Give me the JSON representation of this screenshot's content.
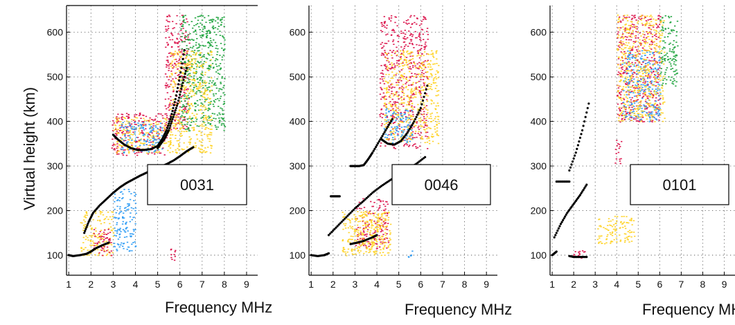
{
  "y_axis_label": "Virtual height  (km)",
  "chart_data": [
    {
      "type": "scatter",
      "title": "",
      "label": "0031",
      "xlabel": "Frequency MHz",
      "ylabel": "Virtual height  (km)",
      "xlim": [
        0.9,
        9.5
      ],
      "ylim": [
        55,
        660
      ],
      "xticks": [
        1,
        2,
        3,
        4,
        5,
        6,
        7,
        8,
        9
      ],
      "yticks": [
        100,
        200,
        300,
        400,
        500,
        600
      ],
      "grid": true,
      "legend": "none",
      "traces": [
        {
          "x": [
            1.0,
            1.2,
            1.5,
            1.8,
            2.0,
            2.2,
            2.5,
            2.8
          ],
          "y": [
            100,
            98,
            100,
            103,
            108,
            115,
            122,
            128
          ]
        },
        {
          "x": [
            1.7,
            1.9,
            2.1,
            2.4,
            2.7,
            3.0,
            3.3,
            3.6,
            3.9,
            4.2,
            4.5,
            4.8,
            5.1,
            5.4,
            5.7,
            6.0,
            6.3,
            6.6
          ],
          "y": [
            150,
            175,
            195,
            212,
            226,
            240,
            252,
            262,
            270,
            278,
            285,
            292,
            298,
            304,
            312,
            322,
            333,
            342
          ]
        },
        {
          "x": [
            3.0,
            3.2,
            3.5,
            3.8,
            4.1,
            4.4,
            4.7,
            5.0,
            5.2,
            5.4,
            5.6,
            5.8,
            6.0,
            6.2
          ],
          "y": [
            370,
            360,
            348,
            340,
            336,
            336,
            338,
            345,
            360,
            380,
            410,
            450,
            500,
            560
          ]
        },
        {
          "x": [
            5.0,
            5.3,
            5.5,
            5.7,
            5.9,
            6.1,
            6.3
          ],
          "y": [
            340,
            360,
            380,
            410,
            440,
            480,
            520
          ]
        }
      ],
      "clouds": [
        {
          "x": [
            2.9,
            5.4
          ],
          "y": [
            325,
            420
          ],
          "color": "#dd1e53"
        },
        {
          "x": [
            3.0,
            5.6
          ],
          "y": [
            330,
            410
          ],
          "color": "#ffd530"
        },
        {
          "x": [
            3.3,
            5.2
          ],
          "y": [
            330,
            400
          ],
          "color": "#36a0f5"
        },
        {
          "x": [
            5.3,
            6.4
          ],
          "y": [
            380,
            640
          ],
          "color": "#dd1e53"
        },
        {
          "x": [
            6.0,
            8.0
          ],
          "y": [
            380,
            640
          ],
          "color": "#27a745"
        },
        {
          "x": [
            5.5,
            7.4
          ],
          "y": [
            330,
            560
          ],
          "color": "#ffd530"
        },
        {
          "x": [
            3.0,
            4.0
          ],
          "y": [
            110,
            250
          ],
          "color": "#36a0f5"
        },
        {
          "x": [
            1.5,
            3.0
          ],
          "y": [
            100,
            200
          ],
          "color": "#ffd530"
        },
        {
          "x": [
            2.0,
            2.9
          ],
          "y": [
            100,
            160
          ],
          "color": "#dd1e53"
        },
        {
          "x": [
            5.4,
            5.8
          ],
          "y": [
            88,
            115
          ],
          "color": "#dd1e53"
        }
      ]
    },
    {
      "type": "scatter",
      "title": "",
      "label": "0046",
      "xlabel": "Frequency MHz",
      "ylabel": "",
      "xlim": [
        0.9,
        9.5
      ],
      "ylim": [
        55,
        660
      ],
      "xticks": [
        1,
        2,
        3,
        4,
        5,
        6,
        7,
        8,
        9
      ],
      "yticks": [
        100,
        200,
        300,
        400,
        500,
        600
      ],
      "grid": true,
      "legend": "none",
      "traces": [
        {
          "x": [
            1.0,
            1.3,
            1.6,
            1.8
          ],
          "y": [
            100,
            98,
            100,
            104
          ]
        },
        {
          "x": [
            1.8,
            2.2,
            2.6,
            3.0,
            3.4,
            3.8,
            4.2,
            4.6,
            5.0,
            5.4,
            5.8,
            6.2
          ],
          "y": [
            145,
            165,
            185,
            205,
            222,
            240,
            255,
            268,
            280,
            292,
            305,
            320
          ]
        },
        {
          "x": [
            1.9,
            2.1,
            2.3
          ],
          "y": [
            232,
            232,
            232
          ]
        },
        {
          "x": [
            2.8,
            3.0,
            3.2,
            3.4,
            3.6,
            3.8,
            4.1,
            4.4,
            4.7
          ],
          "y": [
            300,
            300,
            300,
            302,
            315,
            330,
            355,
            380,
            405
          ]
        },
        {
          "x": [
            4.2,
            4.5,
            4.8,
            5.1,
            5.4,
            5.7,
            6.0,
            6.3
          ],
          "y": [
            360,
            350,
            348,
            356,
            375,
            400,
            430,
            480
          ]
        },
        {
          "x": [
            2.8,
            3.1,
            3.4,
            3.8,
            4.0
          ],
          "y": [
            125,
            128,
            132,
            140,
            145
          ]
        }
      ],
      "clouds": [
        {
          "x": [
            4.1,
            6.3
          ],
          "y": [
            340,
            640
          ],
          "color": "#dd1e53"
        },
        {
          "x": [
            4.3,
            6.8
          ],
          "y": [
            350,
            560
          ],
          "color": "#ffd530"
        },
        {
          "x": [
            4.3,
            5.6
          ],
          "y": [
            350,
            430
          ],
          "color": "#36a0f5"
        },
        {
          "x": [
            3.0,
            4.5
          ],
          "y": [
            115,
            230
          ],
          "color": "#dd1e53"
        },
        {
          "x": [
            3.0,
            4.4
          ],
          "y": [
            120,
            200
          ],
          "color": "#ffd530"
        },
        {
          "x": [
            2.4,
            4.6
          ],
          "y": [
            100,
            200
          ],
          "color": "#ffd530"
        },
        {
          "x": [
            5.4,
            5.6
          ],
          "y": [
            92,
            118
          ],
          "color": "#36a0f5"
        }
      ]
    },
    {
      "type": "scatter",
      "title": "",
      "label": "0101",
      "xlabel": "Frequency MHz",
      "ylabel": "",
      "xlim": [
        0.9,
        9.5
      ],
      "ylim": [
        55,
        660
      ],
      "xticks": [
        1,
        2,
        3,
        4,
        5,
        6,
        7,
        8,
        9
      ],
      "yticks": [
        100,
        200,
        300,
        400,
        500,
        600
      ],
      "grid": true,
      "legend": "none",
      "traces": [
        {
          "x": [
            1.0,
            1.2
          ],
          "y": [
            100,
            108
          ]
        },
        {
          "x": [
            1.1,
            1.4,
            1.7,
            2.0,
            2.3,
            2.6
          ],
          "y": [
            140,
            170,
            195,
            215,
            235,
            258
          ]
        },
        {
          "x": [
            1.2,
            1.5,
            1.8
          ],
          "y": [
            265,
            265,
            265
          ]
        },
        {
          "x": [
            1.8,
            2.1,
            2.4,
            2.7
          ],
          "y": [
            290,
            330,
            380,
            440
          ]
        },
        {
          "x": [
            1.8,
            2.0,
            2.3,
            2.6
          ],
          "y": [
            98,
            96,
            96,
            96
          ]
        }
      ],
      "clouds": [
        {
          "x": [
            4.0,
            6.0
          ],
          "y": [
            400,
            640
          ],
          "color": "#dd1e53"
        },
        {
          "x": [
            4.2,
            6.0
          ],
          "y": [
            400,
            560
          ],
          "color": "#36a0f5"
        },
        {
          "x": [
            4.0,
            6.2
          ],
          "y": [
            400,
            640
          ],
          "color": "#ffd530"
        },
        {
          "x": [
            6.0,
            6.8
          ],
          "y": [
            480,
            640
          ],
          "color": "#27a745"
        },
        {
          "x": [
            3.0,
            4.8
          ],
          "y": [
            125,
            190
          ],
          "color": "#ffd530"
        },
        {
          "x": [
            3.9,
            4.2
          ],
          "y": [
            300,
            360
          ],
          "color": "#dd1e53"
        },
        {
          "x": [
            1.9,
            2.6
          ],
          "y": [
            92,
            112
          ],
          "color": "#dd1e53"
        }
      ]
    }
  ]
}
